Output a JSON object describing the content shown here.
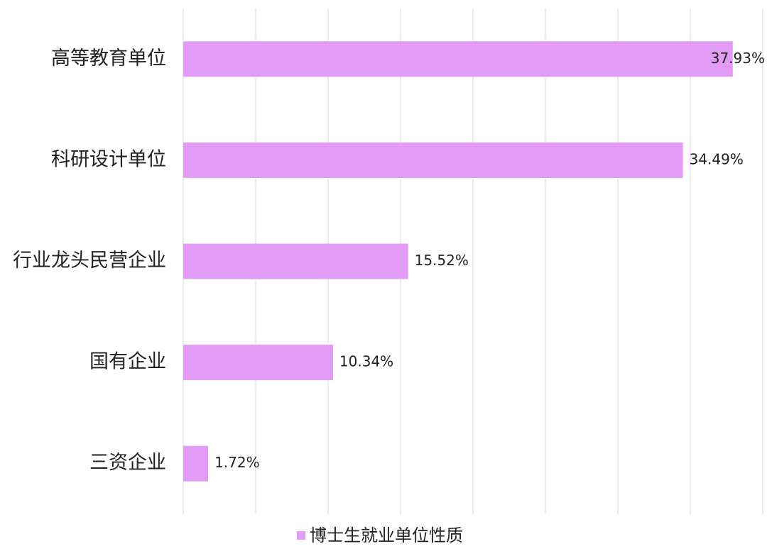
{
  "chart_data": {
    "type": "bar",
    "orientation": "horizontal",
    "categories": [
      "高等教育单位",
      "科研设计单位",
      "行业龙头民营企业",
      "国有企业",
      "三资企业"
    ],
    "series": [
      {
        "name": "博士生就业单位性质",
        "color": "#e29cf5",
        "values": [
          37.93,
          34.49,
          15.52,
          10.34,
          1.72
        ],
        "value_labels": [
          "37.93%",
          "34.49%",
          "15.52%",
          "10.34%",
          "1.72%"
        ]
      }
    ],
    "xlim": [
      0,
      40
    ],
    "xticks": [
      0,
      5,
      10,
      15,
      20,
      25,
      30,
      35,
      40
    ],
    "grid": true,
    "legend": "bottom"
  }
}
